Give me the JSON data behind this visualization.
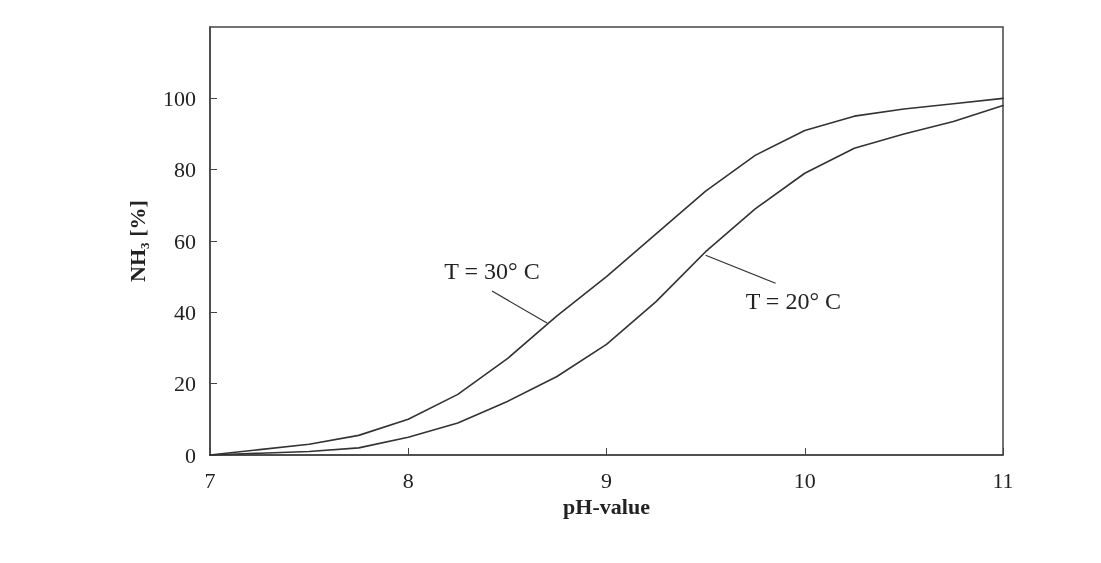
{
  "chart_data": {
    "type": "line",
    "xlabel": "pH-value",
    "ylabel": "NH₃ [%]",
    "xlim": [
      7,
      11
    ],
    "xticks": [
      7,
      8,
      9,
      10,
      11
    ],
    "ylim": [
      0,
      120
    ],
    "yticks": [
      0,
      20,
      40,
      60,
      80,
      100
    ],
    "grid": false,
    "marker": "none",
    "line_style": "solid",
    "series": [
      {
        "color": "#333333",
        "x": [
          7,
          7.25,
          7.5,
          7.75,
          8,
          8.25,
          8.5,
          8.75,
          9,
          9.25,
          9.5,
          9.75,
          10,
          10.25,
          10.5,
          10.75,
          11
        ],
        "values": [
          0,
          1.5,
          3,
          5.5,
          10,
          17,
          27,
          39,
          50,
          62,
          74,
          84,
          91,
          95,
          97,
          98.5,
          100
        ]
      },
      {
        "color": "#333333",
        "x": [
          7,
          7.25,
          7.5,
          7.75,
          8,
          8.25,
          8.5,
          8.75,
          9,
          9.25,
          9.5,
          9.75,
          10,
          10.25,
          10.5,
          10.75,
          11
        ],
        "values": [
          0,
          0.5,
          1,
          2,
          5,
          9,
          15,
          22,
          31,
          43,
          57,
          69,
          79,
          86,
          90,
          93.5,
          98
        ]
      }
    ],
    "annotations": [
      {
        "text": "T = 30° C",
        "x": 8.7,
        "y": 37
      },
      {
        "text": "T = 20° C",
        "x": 9.5,
        "y": 56
      }
    ]
  }
}
